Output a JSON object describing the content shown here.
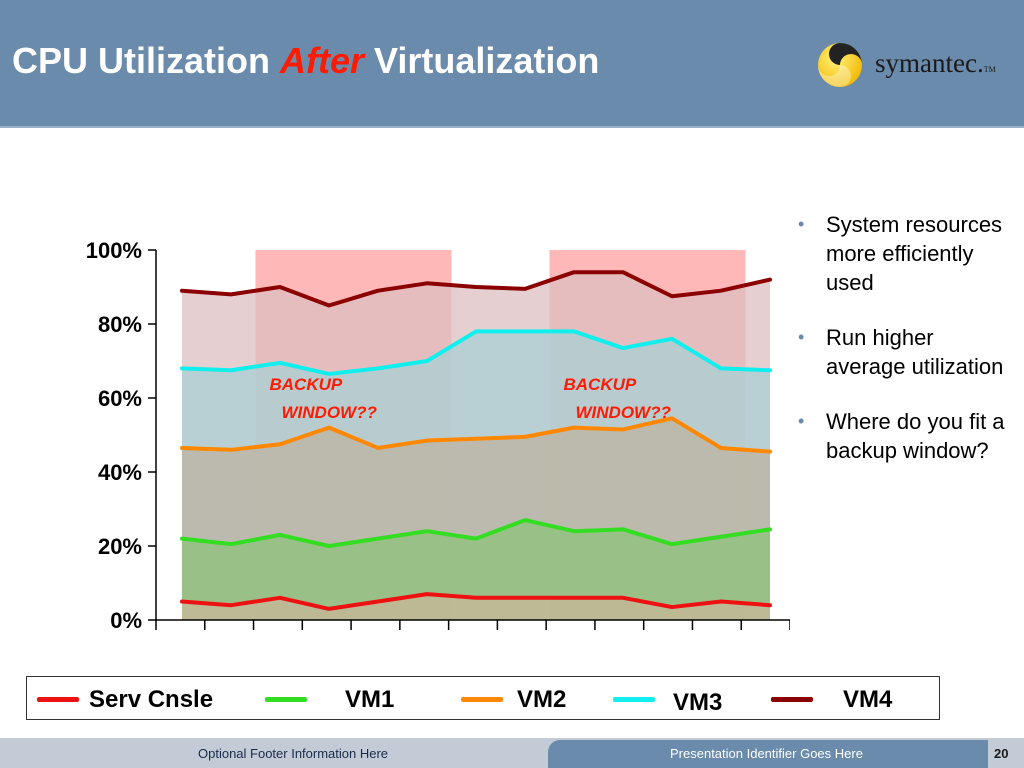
{
  "slide": {
    "title_pre": "CPU Utilization ",
    "title_accent": "After",
    "title_post": " Virtualization",
    "logo_text": "symantec.",
    "logo_tm": "TM",
    "logo_icon": "symantec-swirl-icon"
  },
  "chart_data": {
    "type": "area",
    "stacked": false,
    "x": [
      1,
      2,
      3,
      4,
      5,
      6,
      7,
      8,
      9,
      10,
      11,
      12,
      13
    ],
    "ylim": [
      0,
      100
    ],
    "yticks": [
      "0%",
      "20%",
      "40%",
      "60%",
      "80%",
      "100%"
    ],
    "grid": false,
    "legend_position": "bottom",
    "series": [
      {
        "name": "Serv Cnsle",
        "color": "#ee1111",
        "fill": "#c9b79a",
        "values": [
          5,
          4,
          6,
          3,
          5,
          7,
          6,
          6,
          6,
          6,
          3.5,
          5,
          4
        ]
      },
      {
        "name": "VM1",
        "color": "#33dd22",
        "fill": "#8ec37a",
        "values": [
          22,
          20.5,
          23,
          20,
          22,
          24,
          22,
          27,
          24,
          24.5,
          20.5,
          22.5,
          24.5
        ]
      },
      {
        "name": "VM2",
        "color": "#ff8800",
        "fill": "#bdb3a2",
        "values": [
          46.5,
          46,
          47.5,
          52,
          46.5,
          48.5,
          49,
          49.5,
          52,
          51.5,
          54.5,
          46.5,
          45.5
        ]
      },
      {
        "name": "VM3",
        "color": "#11eeee",
        "fill": "#a8d0d4",
        "values": [
          68,
          67.5,
          69.5,
          66.5,
          68,
          70,
          78,
          78,
          78,
          73.5,
          76,
          68,
          67.5
        ]
      },
      {
        "name": "VM4",
        "color": "#8b0000",
        "fill": "#dcbfc2",
        "values": [
          89,
          88,
          90,
          85,
          89,
          91,
          90,
          89.5,
          94,
          94,
          87.5,
          89,
          92
        ]
      }
    ],
    "annotations": [
      {
        "text_line1": "BACKUP",
        "text_line2": "WINDOW??",
        "x_start": 3,
        "x_end": 6
      },
      {
        "text_line1": "BACKUP",
        "text_line2": "WINDOW??",
        "x_start": 9,
        "x_end": 12
      }
    ],
    "highlight_color": "#ff8888"
  },
  "bullets": [
    "System resources more efficiently used",
    "Run higher average utilization",
    "Where do you fit a backup window?"
  ],
  "footer": {
    "left": "Optional Footer Information Here",
    "right": "Presentation Identifier Goes Here",
    "page": "20"
  }
}
